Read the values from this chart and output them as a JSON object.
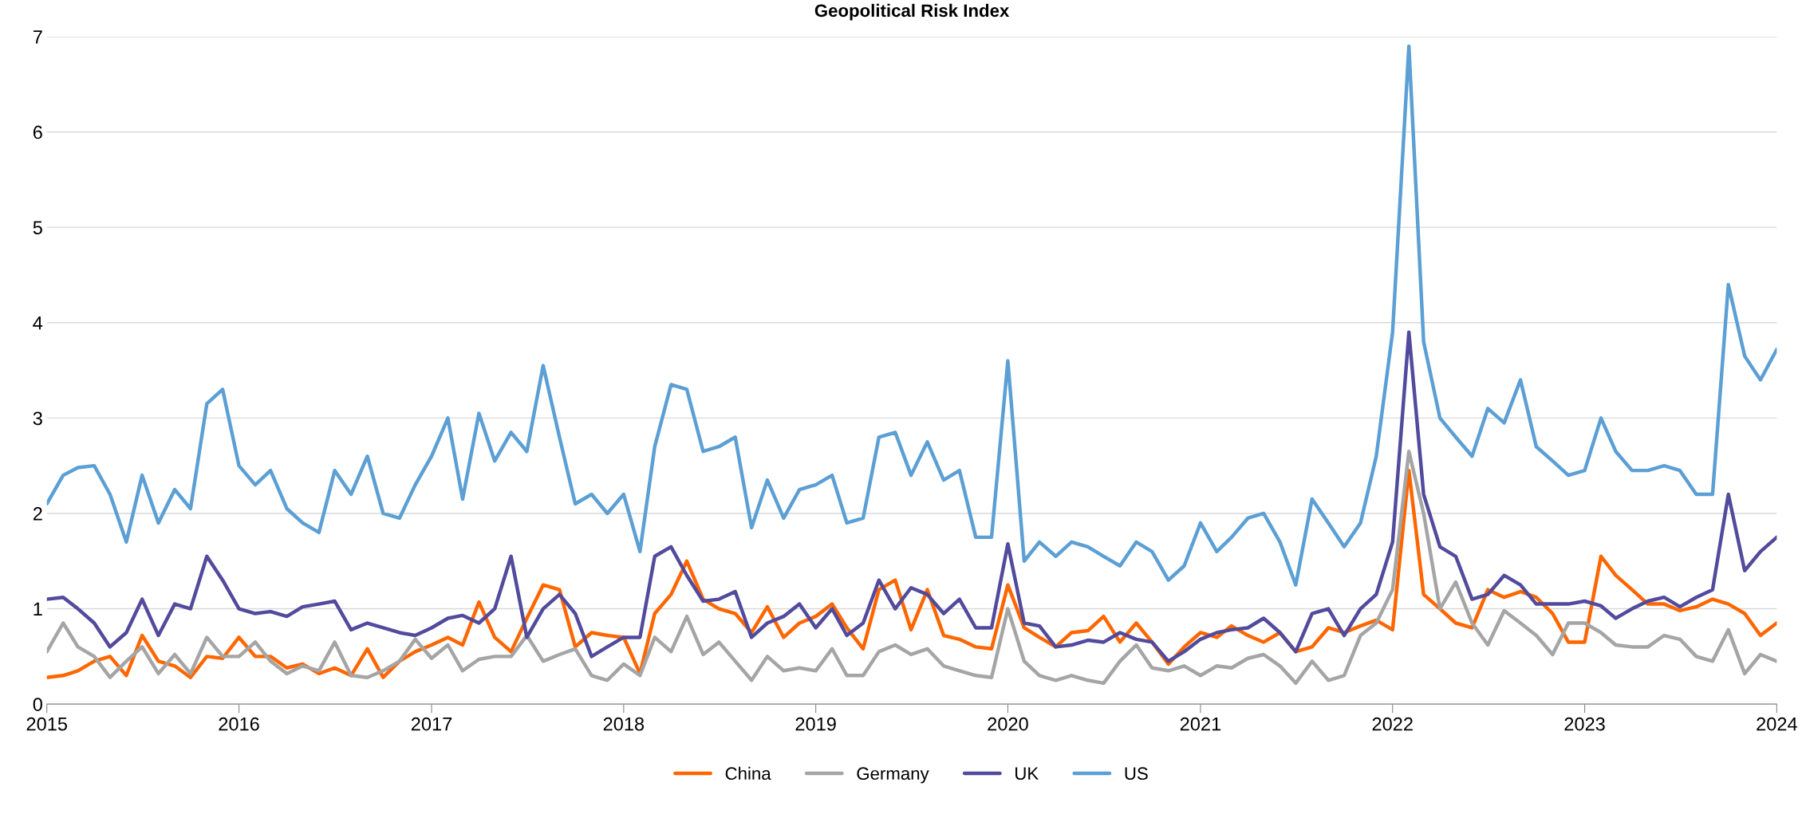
{
  "chart_data": {
    "type": "line",
    "title": "Geopolitical Risk Index",
    "x": [
      "2015-01",
      "2015-02",
      "2015-03",
      "2015-04",
      "2015-05",
      "2015-06",
      "2015-07",
      "2015-08",
      "2015-09",
      "2015-10",
      "2015-11",
      "2015-12",
      "2016-01",
      "2016-02",
      "2016-03",
      "2016-04",
      "2016-05",
      "2016-06",
      "2016-07",
      "2016-08",
      "2016-09",
      "2016-10",
      "2016-11",
      "2016-12",
      "2017-01",
      "2017-02",
      "2017-03",
      "2017-04",
      "2017-05",
      "2017-06",
      "2017-07",
      "2017-08",
      "2017-09",
      "2017-10",
      "2017-11",
      "2017-12",
      "2018-01",
      "2018-02",
      "2018-03",
      "2018-04",
      "2018-05",
      "2018-06",
      "2018-07",
      "2018-08",
      "2018-09",
      "2018-10",
      "2018-11",
      "2018-12",
      "2019-01",
      "2019-02",
      "2019-03",
      "2019-04",
      "2019-05",
      "2019-06",
      "2019-07",
      "2019-08",
      "2019-09",
      "2019-10",
      "2019-11",
      "2019-12",
      "2020-01",
      "2020-02",
      "2020-03",
      "2020-04",
      "2020-05",
      "2020-06",
      "2020-07",
      "2020-08",
      "2020-09",
      "2020-10",
      "2020-11",
      "2020-12",
      "2021-01",
      "2021-02",
      "2021-03",
      "2021-04",
      "2021-05",
      "2021-06",
      "2021-07",
      "2021-08",
      "2021-09",
      "2021-10",
      "2021-11",
      "2021-12",
      "2022-01",
      "2022-02",
      "2022-03",
      "2022-04",
      "2022-05",
      "2022-06",
      "2022-07",
      "2022-08",
      "2022-09",
      "2022-10",
      "2022-11",
      "2022-12",
      "2023-01",
      "2023-02",
      "2023-03",
      "2023-04",
      "2023-05",
      "2023-06",
      "2023-07",
      "2023-08",
      "2023-09",
      "2023-10",
      "2023-11",
      "2023-12",
      "2024-01"
    ],
    "series": [
      {
        "name": "China",
        "color": "#ff6600",
        "values": [
          0.28,
          0.3,
          0.35,
          0.45,
          0.5,
          0.3,
          0.72,
          0.45,
          0.4,
          0.28,
          0.5,
          0.48,
          0.7,
          0.5,
          0.5,
          0.38,
          0.42,
          0.32,
          0.38,
          0.3,
          0.58,
          0.28,
          0.45,
          0.55,
          0.62,
          0.7,
          0.62,
          1.07,
          0.7,
          0.55,
          0.9,
          1.25,
          1.2,
          0.6,
          0.75,
          0.72,
          0.7,
          0.32,
          0.95,
          1.15,
          1.5,
          1.1,
          1.0,
          0.95,
          0.75,
          1.02,
          0.7,
          0.85,
          0.92,
          1.05,
          0.8,
          0.58,
          1.2,
          1.3,
          0.78,
          1.2,
          0.72,
          0.68,
          0.6,
          0.58,
          1.25,
          0.8,
          0.7,
          0.6,
          0.75,
          0.77,
          0.92,
          0.65,
          0.85,
          0.65,
          0.42,
          0.6,
          0.75,
          0.7,
          0.82,
          0.72,
          0.65,
          0.75,
          0.55,
          0.6,
          0.8,
          0.75,
          0.82,
          0.88,
          0.78,
          2.45,
          1.15,
          1.0,
          0.85,
          0.8,
          1.2,
          1.12,
          1.18,
          1.12,
          0.95,
          0.65,
          0.65,
          1.55,
          1.35,
          1.2,
          1.05,
          1.05,
          0.98,
          1.02,
          1.1,
          1.05,
          0.95,
          0.72,
          0.85
        ]
      },
      {
        "name": "Germany",
        "color": "#a5a5a5",
        "values": [
          0.55,
          0.85,
          0.6,
          0.5,
          0.28,
          0.45,
          0.6,
          0.32,
          0.52,
          0.32,
          0.7,
          0.5,
          0.5,
          0.65,
          0.45,
          0.32,
          0.4,
          0.35,
          0.65,
          0.3,
          0.28,
          0.35,
          0.45,
          0.68,
          0.48,
          0.62,
          0.35,
          0.47,
          0.5,
          0.5,
          0.72,
          0.45,
          0.52,
          0.58,
          0.3,
          0.25,
          0.42,
          0.3,
          0.7,
          0.55,
          0.92,
          0.52,
          0.65,
          0.45,
          0.25,
          0.5,
          0.35,
          0.38,
          0.35,
          0.58,
          0.3,
          0.3,
          0.55,
          0.62,
          0.52,
          0.58,
          0.4,
          0.35,
          0.3,
          0.28,
          1.0,
          0.45,
          0.3,
          0.25,
          0.3,
          0.25,
          0.22,
          0.45,
          0.62,
          0.38,
          0.35,
          0.4,
          0.3,
          0.4,
          0.38,
          0.48,
          0.52,
          0.4,
          0.22,
          0.45,
          0.25,
          0.3,
          0.72,
          0.85,
          1.2,
          2.65,
          2.0,
          1.0,
          1.28,
          0.85,
          0.62,
          0.98,
          0.85,
          0.72,
          0.52,
          0.85,
          0.85,
          0.75,
          0.62,
          0.6,
          0.6,
          0.72,
          0.68,
          0.5,
          0.45,
          0.78,
          0.32,
          0.52,
          0.45
        ]
      },
      {
        "name": "UK",
        "color": "#524a9c",
        "values": [
          1.1,
          1.12,
          1.0,
          0.85,
          0.6,
          0.75,
          1.1,
          0.72,
          1.05,
          1.0,
          1.55,
          1.3,
          1.0,
          0.95,
          0.97,
          0.92,
          1.02,
          1.05,
          1.08,
          0.78,
          0.85,
          0.8,
          0.75,
          0.72,
          0.8,
          0.9,
          0.93,
          0.85,
          1.0,
          1.55,
          0.7,
          1.0,
          1.15,
          0.95,
          0.5,
          0.6,
          0.7,
          0.7,
          1.55,
          1.65,
          1.35,
          1.08,
          1.1,
          1.18,
          0.7,
          0.85,
          0.92,
          1.05,
          0.8,
          1.0,
          0.72,
          0.85,
          1.3,
          1.0,
          1.22,
          1.15,
          0.95,
          1.1,
          0.8,
          0.8,
          1.68,
          0.85,
          0.82,
          0.6,
          0.62,
          0.67,
          0.65,
          0.75,
          0.68,
          0.65,
          0.45,
          0.55,
          0.68,
          0.75,
          0.78,
          0.8,
          0.9,
          0.75,
          0.55,
          0.95,
          1.0,
          0.72,
          1.0,
          1.15,
          1.7,
          3.9,
          2.2,
          1.65,
          1.55,
          1.1,
          1.15,
          1.35,
          1.25,
          1.05,
          1.05,
          1.05,
          1.08,
          1.03,
          0.9,
          1.0,
          1.08,
          1.12,
          1.02,
          1.12,
          1.2,
          2.2,
          1.4,
          1.6,
          1.75
        ]
      },
      {
        "name": "US",
        "color": "#5b9fd4",
        "values": [
          2.1,
          2.4,
          2.48,
          2.5,
          2.2,
          1.7,
          2.4,
          1.9,
          2.25,
          2.05,
          3.15,
          3.3,
          2.5,
          2.3,
          2.45,
          2.05,
          1.9,
          1.8,
          2.45,
          2.2,
          2.6,
          2.0,
          1.95,
          2.3,
          2.6,
          3.0,
          2.15,
          3.05,
          2.55,
          2.85,
          2.65,
          3.55,
          2.8,
          2.1,
          2.2,
          2.0,
          2.2,
          1.6,
          2.7,
          3.35,
          3.3,
          2.65,
          2.7,
          2.8,
          1.85,
          2.35,
          1.95,
          2.25,
          2.3,
          2.4,
          1.9,
          1.95,
          2.8,
          2.85,
          2.4,
          2.75,
          2.35,
          2.45,
          1.75,
          1.75,
          3.6,
          1.5,
          1.7,
          1.55,
          1.7,
          1.65,
          1.55,
          1.45,
          1.7,
          1.6,
          1.3,
          1.45,
          1.9,
          1.6,
          1.75,
          1.95,
          2.0,
          1.7,
          1.25,
          2.15,
          1.9,
          1.65,
          1.9,
          2.6,
          3.9,
          6.9,
          3.8,
          3.0,
          2.8,
          2.6,
          3.1,
          2.95,
          3.4,
          2.7,
          2.55,
          2.4,
          2.45,
          3.0,
          2.65,
          2.45,
          2.45,
          2.5,
          2.45,
          2.2,
          2.2,
          4.4,
          3.65,
          3.4,
          3.72
        ]
      }
    ],
    "xlim": [
      "2015-01",
      "2024-01"
    ],
    "xticks": [
      "2015",
      "2016",
      "2017",
      "2018",
      "2019",
      "2020",
      "2021",
      "2022",
      "2023",
      "2024"
    ],
    "ylim": [
      0,
      7
    ],
    "yticks": [
      0,
      1,
      2,
      3,
      4,
      5,
      6,
      7
    ],
    "grid": "y",
    "legend": "bottom",
    "marker": "none",
    "line_style": "solid"
  }
}
